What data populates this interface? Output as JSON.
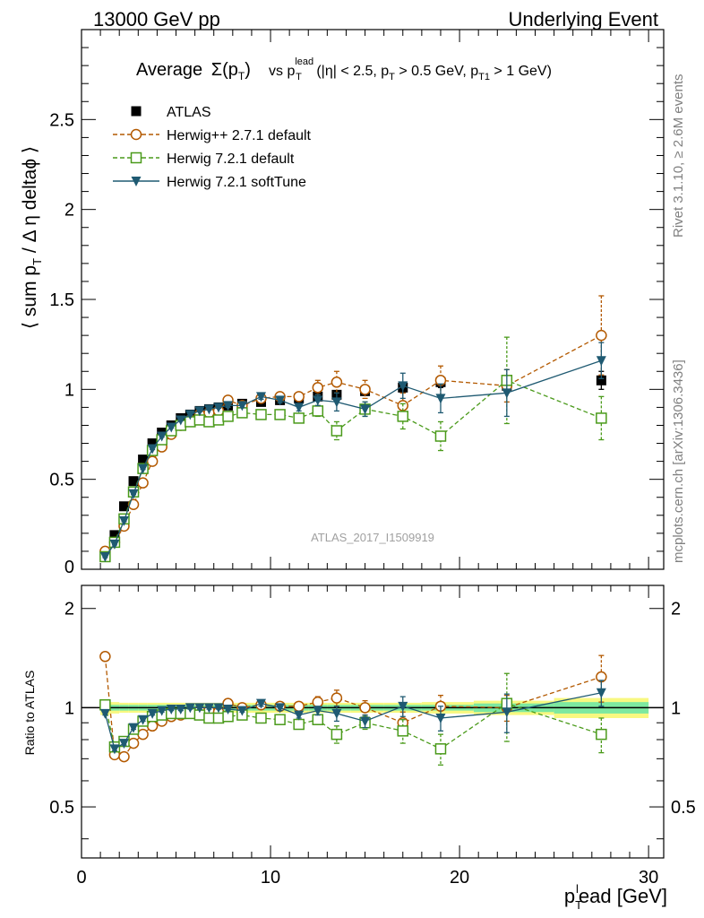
{
  "header": {
    "left": "13000 GeV pp",
    "right": "Underlying Event"
  },
  "title": {
    "prefix": "Average",
    "sigma": "Σ(p",
    "sigma_sub": "T",
    "sigma_close": ")",
    "vs": "vs p",
    "vs_sup": "lead",
    "vs_sub": "T",
    "cuts": "(|η| < 2.5, p",
    "cuts_sub1": "T",
    "cuts_mid": " > 0.5 GeV, p",
    "cuts_sub2": "T1",
    "cuts_end": " > 1 GeV)"
  },
  "ylabel_main": "⟨ sum p",
  "ylabel_main_sub": "T",
  "ylabel_main_end": " / Δ η deltaϕ ⟩",
  "ylabel_ratio": "Ratio to ATLAS",
  "xlabel": "p",
  "xlabel_sub": "T",
  "xlabel_sup": "l",
  "xlabel_end": "ead [GeV]",
  "watermark": "ATLAS_2017_I1509919",
  "side_text_top": "Rivet 3.1.10, ≥ 2.6M events",
  "side_text_bottom": "mcplots.cern.ch [arXiv:1306.3436]",
  "colors": {
    "atlas": "#000000",
    "herwigpp": "#b35900",
    "herwig721": "#4a9a1a",
    "softtune": "#1f5a72",
    "band_inner": "#7de8a0",
    "band_outer": "#f8f880"
  },
  "chart_data": {
    "type": "scatter",
    "x_ticks": [
      0,
      10,
      20,
      30
    ],
    "x_tick_labels": [
      "0",
      "10",
      "20",
      "30"
    ],
    "xlim": [
      0,
      30.8
    ],
    "main_ylim": [
      0,
      3.0
    ],
    "main_y_ticks": [
      0.5,
      1,
      1.5,
      2,
      2.5
    ],
    "main_y_tick_labels": [
      "0.5",
      "1",
      "1.5",
      "2",
      "2.5"
    ],
    "main_y_zero_label": "0",
    "ratio_ylim": [
      0.35,
      2.35
    ],
    "ratio_y_ticks": [
      0.5,
      1,
      2
    ],
    "ratio_y_tick_labels": [
      "0.5",
      "1",
      "2"
    ],
    "x": [
      1.25,
      1.75,
      2.25,
      2.75,
      3.25,
      3.75,
      4.25,
      4.75,
      5.25,
      5.75,
      6.25,
      6.75,
      7.25,
      7.75,
      8.5,
      9.5,
      10.5,
      11.5,
      12.5,
      13.5,
      15,
      17,
      19,
      22.5,
      27.5
    ],
    "series": [
      {
        "name": "ATLAS",
        "marker": "square-filled",
        "values": [
          0.08,
          0.19,
          0.35,
          0.49,
          0.61,
          0.7,
          0.76,
          0.8,
          0.84,
          0.86,
          0.88,
          0.89,
          0.9,
          0.91,
          0.92,
          0.93,
          0.94,
          0.95,
          0.96,
          0.97,
          0.99,
          1.01,
          1.04,
          1.02,
          1.05
        ],
        "errors": [
          0.005,
          0.005,
          0.005,
          0.005,
          0.005,
          0.005,
          0.005,
          0.005,
          0.005,
          0.005,
          0.005,
          0.005,
          0.005,
          0.005,
          0.01,
          0.01,
          0.01,
          0.015,
          0.015,
          0.02,
          0.02,
          0.03,
          0.03,
          0.04,
          0.05
        ],
        "ratio_band_inner": [
          0.02,
          0.02,
          0.02,
          0.02,
          0.02,
          0.02,
          0.02,
          0.02,
          0.02,
          0.02,
          0.02,
          0.02,
          0.02,
          0.02,
          0.02,
          0.02,
          0.02,
          0.02,
          0.02,
          0.02,
          0.02,
          0.02,
          0.02,
          0.03,
          0.04
        ],
        "ratio_band_outer": [
          0.05,
          0.04,
          0.035,
          0.035,
          0.035,
          0.035,
          0.035,
          0.035,
          0.035,
          0.035,
          0.035,
          0.035,
          0.035,
          0.035,
          0.035,
          0.035,
          0.035,
          0.035,
          0.035,
          0.035,
          0.035,
          0.035,
          0.04,
          0.05,
          0.07
        ]
      },
      {
        "name": "Herwig++ 2.7.1 default",
        "marker": "circle-open",
        "values": [
          0.1,
          0.15,
          0.24,
          0.36,
          0.48,
          0.6,
          0.68,
          0.75,
          0.8,
          0.83,
          0.86,
          0.87,
          0.88,
          0.94,
          0.91,
          0.95,
          0.96,
          0.96,
          1.01,
          1.04,
          1.0,
          0.91,
          1.05,
          1.02,
          1.3
        ],
        "errors": [
          0.005,
          0.005,
          0.005,
          0.005,
          0.005,
          0.005,
          0.005,
          0.005,
          0.005,
          0.005,
          0.005,
          0.005,
          0.005,
          0.01,
          0.01,
          0.01,
          0.01,
          0.015,
          0.04,
          0.06,
          0.05,
          0.07,
          0.08,
          0.09,
          0.22
        ],
        "ratio": [
          1.43,
          0.72,
          0.71,
          0.78,
          0.83,
          0.88,
          0.91,
          0.94,
          0.95,
          0.97,
          0.98,
          0.98,
          0.97,
          1.03,
          1.0,
          1.02,
          1.01,
          1.01,
          1.04,
          1.07,
          1.0,
          0.9,
          1.01,
          1.0,
          1.24
        ],
        "ratio_errors": [
          0.01,
          0.01,
          0.01,
          0.01,
          0.01,
          0.01,
          0.01,
          0.01,
          0.01,
          0.01,
          0.01,
          0.01,
          0.01,
          0.01,
          0.01,
          0.01,
          0.01,
          0.02,
          0.04,
          0.06,
          0.05,
          0.07,
          0.08,
          0.09,
          0.2
        ]
      },
      {
        "name": "Herwig 7.2.1 default",
        "marker": "square-open",
        "values": [
          0.07,
          0.15,
          0.28,
          0.43,
          0.56,
          0.66,
          0.72,
          0.77,
          0.8,
          0.82,
          0.83,
          0.82,
          0.83,
          0.85,
          0.87,
          0.86,
          0.86,
          0.84,
          0.88,
          0.77,
          0.89,
          0.85,
          0.74,
          1.05,
          0.84
        ],
        "errors": [
          0.005,
          0.005,
          0.005,
          0.005,
          0.005,
          0.005,
          0.005,
          0.005,
          0.005,
          0.005,
          0.005,
          0.005,
          0.005,
          0.01,
          0.01,
          0.01,
          0.01,
          0.02,
          0.03,
          0.05,
          0.04,
          0.07,
          0.08,
          0.24,
          0.12
        ],
        "ratio": [
          1.02,
          0.76,
          0.79,
          0.86,
          0.91,
          0.94,
          0.95,
          0.96,
          0.96,
          0.96,
          0.95,
          0.93,
          0.93,
          0.94,
          0.95,
          0.93,
          0.92,
          0.89,
          0.92,
          0.83,
          0.9,
          0.85,
          0.75,
          1.03,
          0.83
        ],
        "ratio_errors": [
          0.01,
          0.01,
          0.01,
          0.01,
          0.01,
          0.01,
          0.01,
          0.01,
          0.01,
          0.01,
          0.01,
          0.01,
          0.01,
          0.01,
          0.01,
          0.01,
          0.01,
          0.02,
          0.03,
          0.05,
          0.04,
          0.07,
          0.08,
          0.24,
          0.1
        ]
      },
      {
        "name": "Herwig 7.2.1 softTune",
        "marker": "triangle-down-filled",
        "values": [
          0.07,
          0.14,
          0.27,
          0.42,
          0.56,
          0.67,
          0.74,
          0.79,
          0.83,
          0.86,
          0.88,
          0.89,
          0.9,
          0.91,
          0.91,
          0.96,
          0.94,
          0.9,
          0.94,
          0.93,
          0.89,
          1.02,
          0.95,
          0.98,
          1.16
        ],
        "errors": [
          0.005,
          0.005,
          0.005,
          0.005,
          0.005,
          0.005,
          0.005,
          0.005,
          0.005,
          0.005,
          0.005,
          0.005,
          0.005,
          0.01,
          0.01,
          0.015,
          0.015,
          0.02,
          0.03,
          0.05,
          0.04,
          0.07,
          0.08,
          0.13,
          0.1
        ],
        "ratio": [
          0.96,
          0.75,
          0.78,
          0.87,
          0.92,
          0.96,
          0.98,
          0.99,
          0.99,
          1.0,
          1.0,
          1.0,
          1.0,
          0.99,
          0.98,
          1.03,
          1.0,
          0.95,
          0.98,
          0.96,
          0.91,
          1.01,
          0.93,
          0.97,
          1.11
        ],
        "ratio_errors": [
          0.01,
          0.01,
          0.01,
          0.01,
          0.01,
          0.01,
          0.01,
          0.01,
          0.01,
          0.01,
          0.01,
          0.01,
          0.01,
          0.01,
          0.01,
          0.02,
          0.02,
          0.02,
          0.03,
          0.05,
          0.04,
          0.07,
          0.08,
          0.13,
          0.1
        ]
      }
    ],
    "legend_placement": "top-left"
  }
}
